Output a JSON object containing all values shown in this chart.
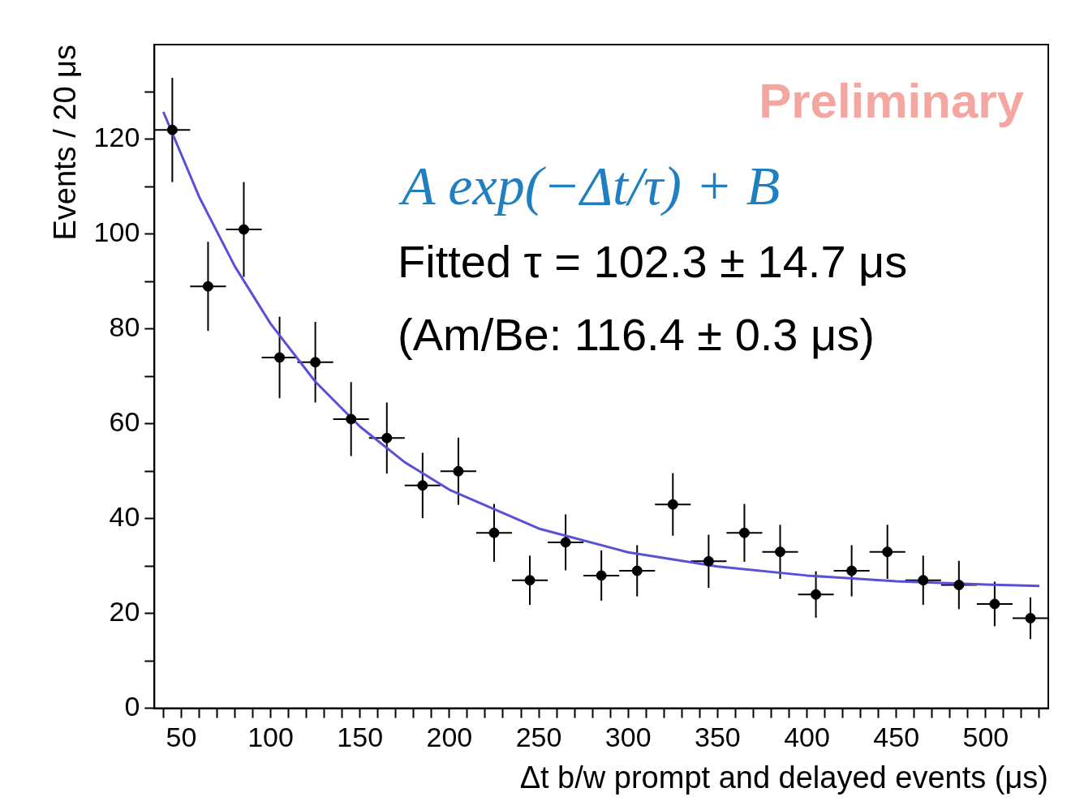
{
  "chart_data": {
    "type": "scatter",
    "xlabel": "Δt b/w prompt and delayed events (μs)",
    "ylabel": "Events / 20 μs",
    "annotations": [
      "Preliminary",
      "A exp(−Δt/τ) + B",
      "Fitted τ = 102.3 ± 14.7 μs",
      "(Am/Be: 116.4 ± 0.3 μs)"
    ],
    "xlim": [
      35,
      535
    ],
    "ylim": [
      0,
      140
    ],
    "xticks": [
      {
        "value": 40,
        "label": null
      },
      50,
      {
        "value": 60,
        "label": null
      },
      {
        "value": 70,
        "label": null
      },
      {
        "value": 80,
        "label": null
      },
      {
        "value": 90,
        "label": null
      },
      100,
      {
        "value": 110,
        "label": null
      },
      {
        "value": 120,
        "label": null
      },
      {
        "value": 130,
        "label": null
      },
      {
        "value": 140,
        "label": null
      },
      150,
      {
        "value": 160,
        "label": null
      },
      {
        "value": 170,
        "label": null
      },
      {
        "value": 180,
        "label": null
      },
      {
        "value": 190,
        "label": null
      },
      200,
      {
        "value": 210,
        "label": null
      },
      {
        "value": 220,
        "label": null
      },
      {
        "value": 230,
        "label": null
      },
      {
        "value": 240,
        "label": null
      },
      250,
      {
        "value": 260,
        "label": null
      },
      {
        "value": 270,
        "label": null
      },
      {
        "value": 280,
        "label": null
      },
      {
        "value": 290,
        "label": null
      },
      300,
      {
        "value": 310,
        "label": null
      },
      {
        "value": 320,
        "label": null
      },
      {
        "value": 330,
        "label": null
      },
      {
        "value": 340,
        "label": null
      },
      350,
      {
        "value": 360,
        "label": null
      },
      {
        "value": 370,
        "label": null
      },
      {
        "value": 380,
        "label": null
      },
      {
        "value": 390,
        "label": null
      },
      400,
      {
        "value": 410,
        "label": null
      },
      {
        "value": 420,
        "label": null
      },
      {
        "value": 430,
        "label": null
      },
      {
        "value": 440,
        "label": null
      },
      450,
      {
        "value": 460,
        "label": null
      },
      {
        "value": 470,
        "label": null
      },
      {
        "value": 480,
        "label": null
      },
      {
        "value": 490,
        "label": null
      },
      500,
      {
        "value": 510,
        "label": null
      },
      {
        "value": 520,
        "label": null
      },
      {
        "value": 530,
        "label": null
      }
    ],
    "yticks": [
      0,
      {
        "value": 10,
        "label": null
      },
      20,
      {
        "value": 30,
        "label": null
      },
      40,
      {
        "value": 50,
        "label": null
      },
      60,
      {
        "value": 70,
        "label": null
      },
      80,
      {
        "value": 90,
        "label": null
      },
      100,
      {
        "value": 110,
        "label": null
      },
      120,
      {
        "value": 130,
        "label": null
      }
    ],
    "grid": false,
    "legend": false,
    "series": [
      {
        "color": "#000000",
        "marker": "circle",
        "x": [
          45,
          65,
          85,
          105,
          125,
          145,
          165,
          185,
          205,
          225,
          245,
          265,
          285,
          305,
          325,
          345,
          365,
          385,
          405,
          425,
          445,
          465,
          485,
          505,
          525
        ],
        "values": [
          122,
          89,
          101,
          74,
          73,
          61,
          57,
          47,
          50,
          37,
          27,
          35,
          28,
          29,
          43,
          31,
          37,
          33,
          24,
          29,
          33,
          27,
          26,
          22,
          19
        ],
        "errors": [
          11.0,
          9.4,
          10.0,
          8.6,
          8.5,
          7.8,
          7.5,
          6.9,
          7.1,
          6.1,
          5.2,
          5.9,
          5.3,
          5.4,
          6.6,
          5.6,
          6.1,
          5.7,
          4.9,
          5.4,
          5.7,
          5.2,
          5.1,
          4.7,
          4.4
        ],
        "xerrors": [
          10,
          10,
          10,
          10,
          10,
          10,
          10,
          10,
          10,
          10,
          10,
          10,
          10,
          10,
          10,
          10,
          10,
          10,
          10,
          10,
          10,
          10,
          10,
          10,
          10
        ]
      },
      {
        "type": "line",
        "color": "#5a50d8",
        "marker": "none",
        "line_style": "solid",
        "x": [
          40,
          60,
          80,
          100,
          125,
          150,
          175,
          200,
          250,
          300,
          350,
          400,
          450,
          500,
          530
        ],
        "values": [
          125.8,
          107.9,
          93.2,
          81.1,
          68.9,
          59.4,
          51.9,
          46.1,
          37.9,
          32.9,
          29.9,
          28.0,
          26.8,
          26.1,
          25.8
        ]
      }
    ]
  }
}
